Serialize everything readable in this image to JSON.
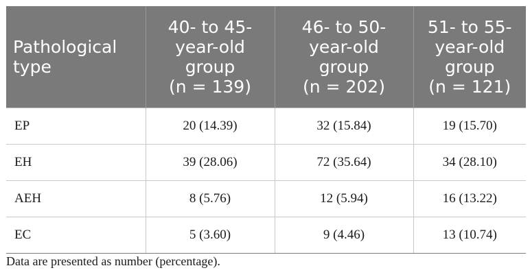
{
  "table": {
    "header": {
      "col0": [
        "Pathological",
        "type"
      ],
      "col1": [
        "40- to 45-",
        "year-old",
        "group",
        "(n = 139)"
      ],
      "col2": [
        "46- to 50-",
        "year-old",
        "group",
        "(n = 202)"
      ],
      "col3": [
        "51- to 55-",
        "year-old",
        "group",
        "(n = 121)"
      ]
    },
    "rows": [
      [
        "EP",
        "20 (14.39)",
        "32 (15.84)",
        "19 (15.70)"
      ],
      [
        "EH",
        "39 (28.06)",
        "72 (35.64)",
        "34 (28.10)"
      ],
      [
        "AEH",
        "8 (5.76)",
        "12 (5.94)",
        "16 (13.22)"
      ],
      [
        "EC",
        "5 (3.60)",
        "9 (4.46)",
        "13 (10.74)"
      ]
    ]
  },
  "footnote": "Data are presented as number (percentage)."
}
